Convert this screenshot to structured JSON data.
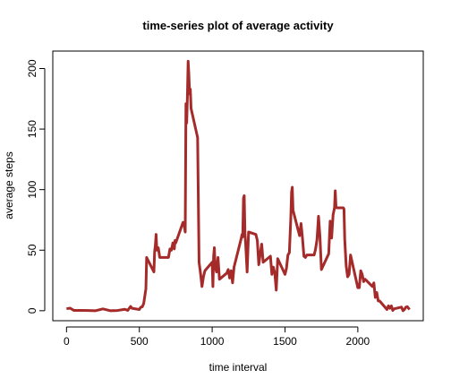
{
  "chart_data": {
    "type": "line",
    "title": "time-series plot of average activity",
    "xlabel": "time interval",
    "ylabel": "average steps",
    "color": "#a52a2a",
    "xlim": [
      -94.2,
      2449.2
    ],
    "ylim": [
      -8.25,
      214.42
    ],
    "xticks": [
      0,
      500,
      1000,
      1500,
      2000
    ],
    "yticks": [
      0,
      50,
      100,
      150,
      200
    ],
    "x": [
      0,
      25,
      50,
      100,
      150,
      200,
      250,
      300,
      350,
      400,
      420,
      440,
      450,
      500,
      510,
      520,
      530,
      545,
      550,
      600,
      605,
      610,
      615,
      620,
      630,
      640,
      700,
      710,
      720,
      730,
      740,
      745,
      750,
      800,
      810,
      815,
      820,
      825,
      830,
      835,
      840,
      845,
      850,
      855,
      900,
      910,
      920,
      930,
      940,
      950,
      1000,
      1005,
      1010,
      1015,
      1020,
      1030,
      1040,
      1050,
      1100,
      1110,
      1120,
      1130,
      1140,
      1150,
      1200,
      1205,
      1210,
      1215,
      1220,
      1225,
      1230,
      1240,
      1250,
      1300,
      1310,
      1320,
      1330,
      1340,
      1350,
      1400,
      1410,
      1420,
      1430,
      1440,
      1450,
      1500,
      1510,
      1520,
      1530,
      1540,
      1545,
      1550,
      1555,
      1600,
      1610,
      1620,
      1630,
      1640,
      1650,
      1700,
      1710,
      1720,
      1730,
      1740,
      1750,
      1800,
      1810,
      1820,
      1830,
      1840,
      1845,
      1850,
      1855,
      1900,
      1905,
      1910,
      1920,
      1930,
      1940,
      1950,
      2000,
      2010,
      2020,
      2030,
      2040,
      2050,
      2100,
      2110,
      2120,
      2130,
      2140,
      2150,
      2200,
      2210,
      2220,
      2230,
      2240,
      2250,
      2300,
      2310,
      2320,
      2330,
      2340,
      2355
    ],
    "values": [
      1.7,
      2.1,
      0.3,
      0.3,
      0.2,
      0,
      1.5,
      0,
      0.2,
      1.2,
      0.3,
      3.5,
      2,
      1,
      3,
      3.2,
      6,
      18,
      44,
      32,
      49,
      54,
      63,
      50,
      52,
      44,
      44,
      51,
      50,
      56,
      51,
      58,
      56,
      73,
      69,
      65,
      171,
      155,
      177,
      206,
      195,
      179,
      183,
      167,
      143,
      40,
      31,
      20,
      28,
      33,
      40,
      20,
      45,
      52,
      37,
      32,
      44,
      26,
      31,
      34,
      27,
      33,
      23,
      36,
      60,
      63,
      61,
      93,
      95,
      64,
      55,
      32,
      65,
      63,
      58,
      38,
      47,
      55,
      40,
      45,
      30,
      36,
      31,
      17,
      43,
      30,
      35,
      46,
      48,
      77,
      98,
      102,
      83,
      62,
      72,
      60,
      45,
      44,
      46,
      46,
      51,
      59,
      78,
      61,
      34,
      47,
      74,
      60,
      79,
      85,
      99,
      86,
      85,
      85,
      84,
      59,
      37,
      28,
      30,
      46,
      19,
      19,
      33,
      30,
      24,
      26,
      20,
      23,
      11,
      15,
      8,
      8,
      1,
      4,
      2,
      4,
      0.2,
      1.6,
      3,
      0,
      1,
      3,
      3.3,
      1
    ]
  }
}
